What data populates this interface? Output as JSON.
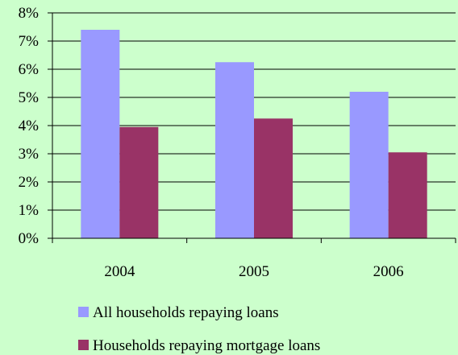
{
  "chart_data": {
    "type": "bar",
    "categories": [
      "2004",
      "2005",
      "2006"
    ],
    "series": [
      {
        "name": "All households repaying loans",
        "values": [
          7.4,
          6.25,
          5.2
        ],
        "color": "#9999ff"
      },
      {
        "name": "Households repaying mortgage loans",
        "values": [
          3.95,
          4.25,
          3.05
        ],
        "color": "#993366"
      }
    ],
    "y_ticks": [
      "0%",
      "1%",
      "2%",
      "3%",
      "4%",
      "5%",
      "6%",
      "7%",
      "8%"
    ],
    "ylim": [
      0,
      8
    ],
    "grid": true,
    "legend_position": "bottom-center",
    "background_color": "#ccffcc",
    "plot_background_color": "#ccffcc"
  }
}
